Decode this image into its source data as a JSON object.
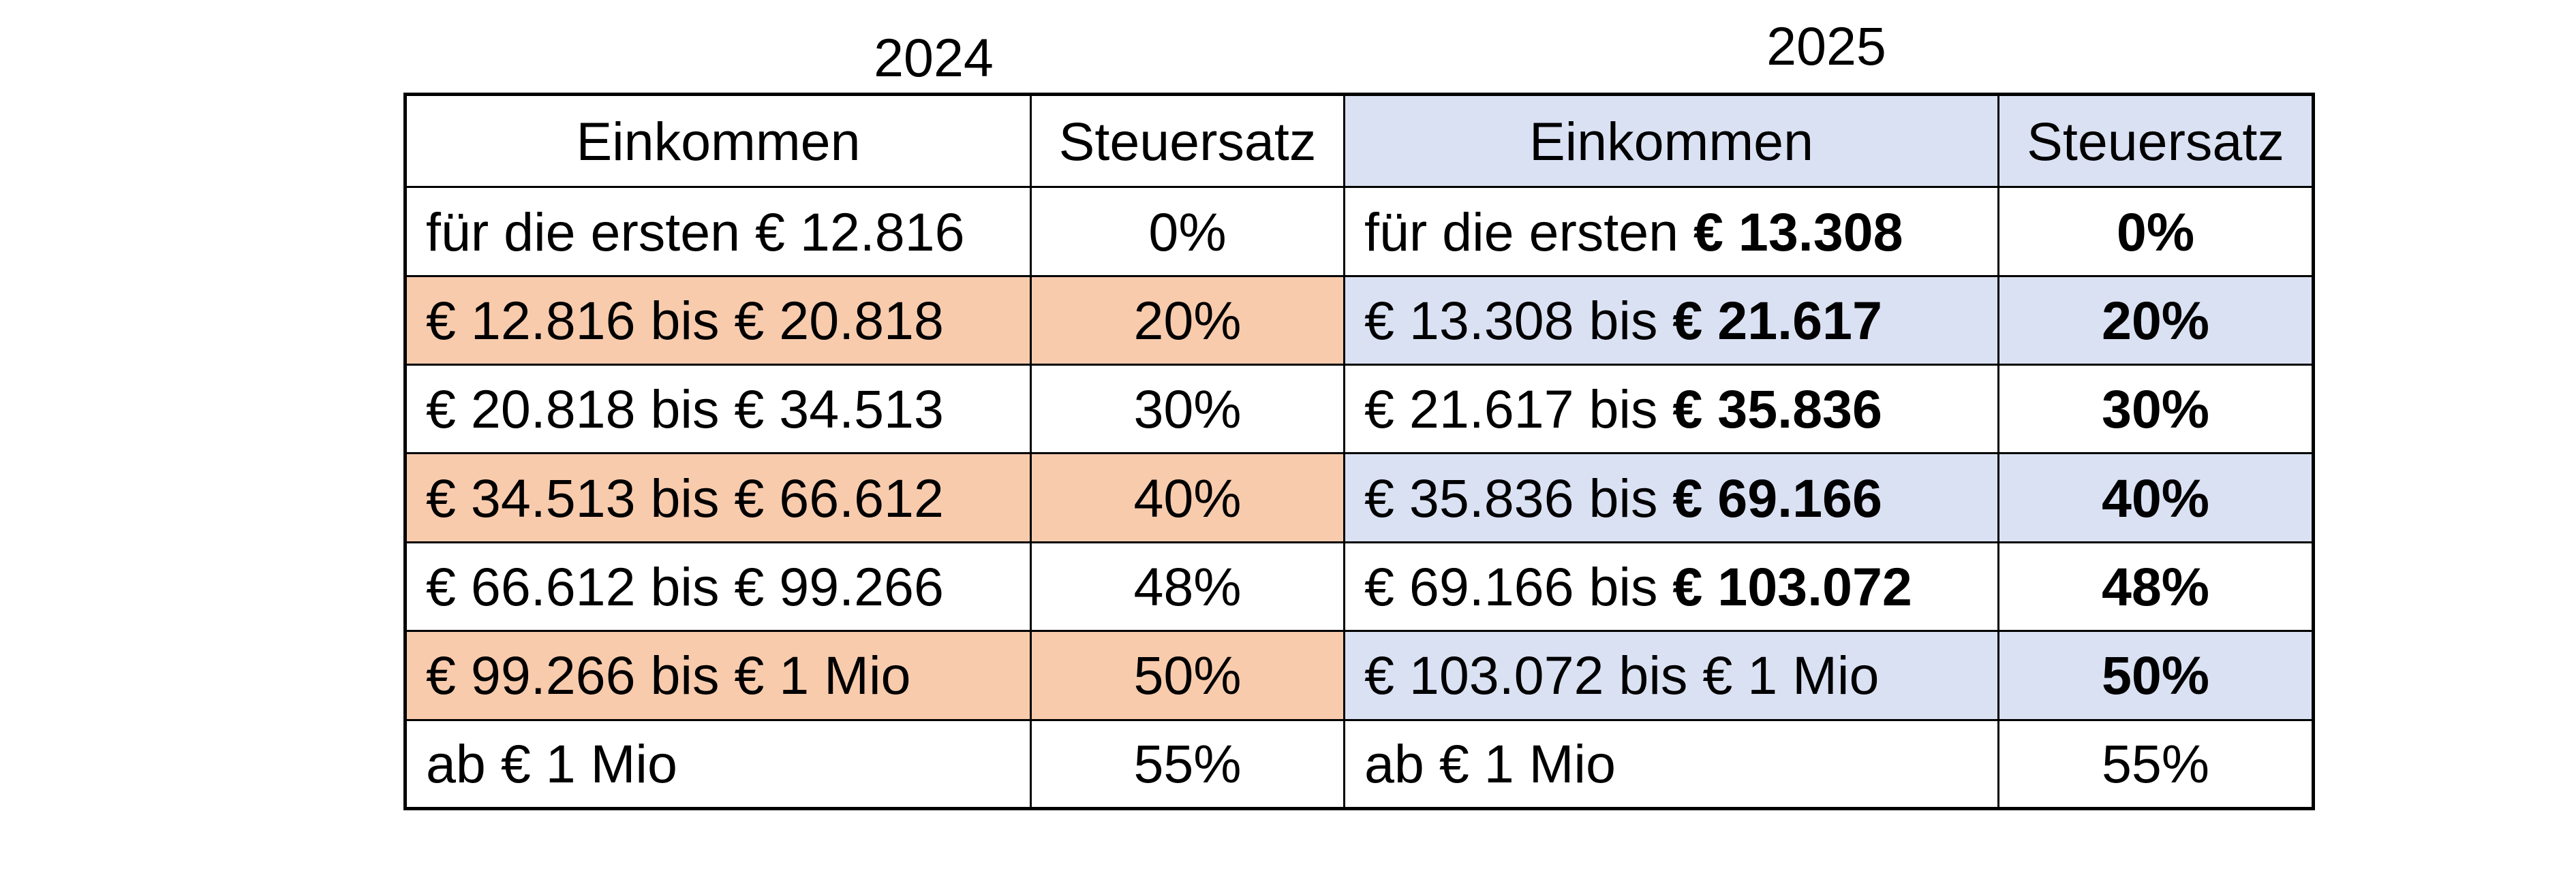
{
  "years": {
    "left": "2024",
    "right": "2025"
  },
  "header": {
    "income_2024": "Einkommen",
    "rate_2024": "Steuersatz",
    "income_2025": "Einkommen",
    "rate_2025": "Steuersatz"
  },
  "colors": {
    "highlight_2024": "#f8cbad",
    "highlight_2025": "#dae1f3",
    "border": "#000000"
  },
  "rows": [
    {
      "income_2024": "für die ersten € 12.816",
      "rate_2024": "0%",
      "income_2025_prefix": "für die ersten ",
      "income_2025_bold": "€ 13.308",
      "rate_2025": "0%"
    },
    {
      "income_2024": "€ 12.816 bis € 20.818",
      "rate_2024": "20%",
      "income_2025_prefix": "€ 13.308 bis ",
      "income_2025_bold": "€ 21.617",
      "rate_2025": "20%"
    },
    {
      "income_2024": "€ 20.818 bis € 34.513",
      "rate_2024": "30%",
      "income_2025_prefix": "€ 21.617 bis ",
      "income_2025_bold": "€ 35.836",
      "rate_2025": "30%"
    },
    {
      "income_2024": "€ 34.513 bis € 66.612",
      "rate_2024": "40%",
      "income_2025_prefix": "€ 35.836 bis ",
      "income_2025_bold": "€ 69.166",
      "rate_2025": "40%"
    },
    {
      "income_2024": "€ 66.612 bis € 99.266",
      "rate_2024": "48%",
      "income_2025_prefix": "€ 69.166 bis ",
      "income_2025_bold": "€ 103.072",
      "rate_2025": "48%"
    },
    {
      "income_2024": "€ 99.266 bis € 1 Mio",
      "rate_2024": "50%",
      "income_2025_prefix": "€ 103.072 bis € 1 Mio",
      "income_2025_bold": "",
      "rate_2025": "50%"
    },
    {
      "income_2024": "ab € 1 Mio",
      "rate_2024": "55%",
      "income_2025_prefix": "ab € 1 Mio",
      "income_2025_bold": "",
      "rate_2025": "55%"
    }
  ]
}
